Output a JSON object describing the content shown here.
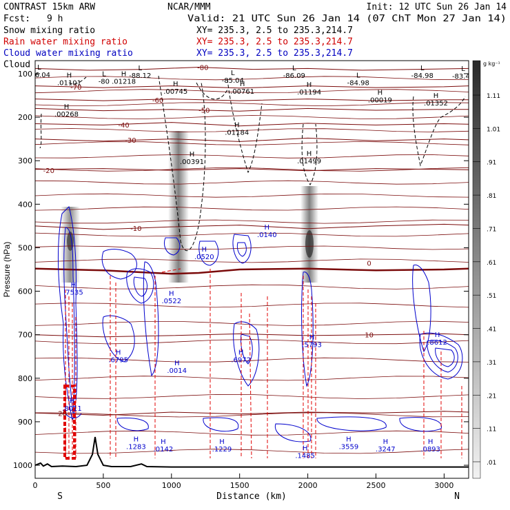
{
  "header": {
    "model": "CONTRAST 15km ARW",
    "institution": "NCAR/MMM",
    "init": "Init: 12 UTC Sun 26 Jan 14",
    "fcst_label": "Fcst:",
    "fcst_value": "9 h",
    "valid": "Valid: 21 UTC Sun 26 Jan 14 (07 ChT Mon 27 Jan 14)"
  },
  "fields": [
    {
      "name": "Snow mixing ratio",
      "xy": "XY= 235.3,  2.5 to 235.3,214.7",
      "color": "#000000"
    },
    {
      "name": "Rain water mixing ratio",
      "xy": "XY= 235.3,  2.5 to 235.3,214.7",
      "color": "#d00000"
    },
    {
      "name": "Cloud water mixing ratio",
      "xy": "XY= 235.3,  2.5 to 235.3,214.7",
      "color": "#0000c0"
    },
    {
      "name": "Cloud ice mixing ratio",
      "xy": "XY= 235.3,  2.5 to 235.3,214.7",
      "color": "#000000"
    }
  ],
  "colors": {
    "temperature": "#7a0a0a",
    "rain": "#e00000",
    "cloud_water": "#0000cc",
    "cloud_ice": "#000000",
    "terrain": "#000000"
  },
  "chart_data": {
    "type": "cross-section",
    "xlabel": "Distance (km)",
    "ylabel": "Pressure (hPa)",
    "xlim": [
      0,
      3180
    ],
    "ylim": [
      1030,
      70
    ],
    "x_ticks": [
      0,
      500,
      1000,
      1500,
      2000,
      2500,
      3000
    ],
    "y_ticks": [
      100,
      200,
      300,
      400,
      500,
      600,
      700,
      800,
      900,
      1000
    ],
    "x_end_labels": {
      "left": "S",
      "right": "N"
    },
    "colorbar": {
      "unit": "g kg⁻¹",
      "ticks": [
        "1.11",
        "1.01",
        ".91",
        ".81",
        ".71",
        ".61",
        ".51",
        ".41",
        ".31",
        ".21",
        ".11",
        ".01"
      ]
    },
    "terrain": [
      [
        0,
        1000
      ],
      [
        40,
        995
      ],
      [
        60,
        1002
      ],
      [
        90,
        997
      ],
      [
        120,
        1003
      ],
      [
        200,
        1002
      ],
      [
        300,
        1003
      ],
      [
        380,
        1000
      ],
      [
        420,
        975
      ],
      [
        440,
        935
      ],
      [
        460,
        975
      ],
      [
        500,
        1000
      ],
      [
        560,
        1003
      ],
      [
        700,
        1003
      ],
      [
        780,
        997
      ],
      [
        820,
        1003
      ],
      [
        1000,
        1004
      ],
      [
        1500,
        1004
      ],
      [
        2000,
        1004
      ],
      [
        2500,
        1004
      ],
      [
        3000,
        1004
      ],
      [
        3180,
        1004
      ]
    ],
    "temperature_isotherms": [
      {
        "label": "-80",
        "x": 1230,
        "p": 85,
        "path": [
          [
            0,
            88
          ],
          [
            400,
            92
          ],
          [
            800,
            90
          ],
          [
            1200,
            85
          ],
          [
            1600,
            90
          ],
          [
            2000,
            88
          ],
          [
            2400,
            92
          ],
          [
            2800,
            90
          ],
          [
            3180,
            88
          ]
        ]
      },
      {
        "label": "-70",
        "x": 300,
        "p": 130,
        "path": [
          [
            0,
            128
          ],
          [
            500,
            132
          ],
          [
            1000,
            128
          ],
          [
            1500,
            133
          ],
          [
            2000,
            128
          ],
          [
            2500,
            132
          ],
          [
            3000,
            130
          ],
          [
            3180,
            128
          ]
        ]
      },
      {
        "label": "-60",
        "x": 900,
        "p": 160,
        "path": [
          [
            0,
            158
          ],
          [
            500,
            162
          ],
          [
            1000,
            158
          ],
          [
            1500,
            162
          ],
          [
            2000,
            158
          ],
          [
            2500,
            162
          ],
          [
            3000,
            160
          ],
          [
            3180,
            160
          ]
        ]
      },
      {
        "label": "-50",
        "x": 1240,
        "p": 183,
        "path": [
          [
            0,
            180
          ],
          [
            500,
            185
          ],
          [
            1000,
            182
          ],
          [
            1500,
            186
          ],
          [
            2000,
            180
          ],
          [
            2500,
            184
          ],
          [
            3000,
            182
          ],
          [
            3180,
            182
          ]
        ]
      },
      {
        "label": "-40",
        "x": 650,
        "p": 217,
        "path": [
          [
            0,
            215
          ],
          [
            500,
            218
          ],
          [
            1000,
            212
          ],
          [
            1500,
            220
          ],
          [
            2000,
            214
          ],
          [
            2500,
            218
          ],
          [
            3000,
            215
          ],
          [
            3180,
            216
          ]
        ]
      },
      {
        "label": "-30",
        "x": 700,
        "p": 252,
        "path": [
          [
            0,
            250
          ],
          [
            500,
            255
          ],
          [
            1000,
            250
          ],
          [
            1500,
            256
          ],
          [
            2000,
            248
          ],
          [
            2500,
            254
          ],
          [
            3000,
            250
          ],
          [
            3180,
            252
          ]
        ]
      },
      {
        "label": "-20",
        "x": 100,
        "p": 322,
        "path": [
          [
            0,
            320
          ],
          [
            500,
            318
          ],
          [
            1000,
            322
          ],
          [
            1500,
            318
          ],
          [
            2000,
            323
          ],
          [
            2500,
            318
          ],
          [
            3000,
            320
          ],
          [
            3180,
            321
          ]
        ]
      },
      {
        "label": "-10",
        "x": 740,
        "p": 455,
        "path": [
          [
            0,
            450
          ],
          [
            500,
            458
          ],
          [
            1000,
            452
          ],
          [
            1500,
            448
          ],
          [
            2000,
            456
          ],
          [
            2500,
            450
          ],
          [
            3000,
            446
          ],
          [
            3180,
            448
          ]
        ]
      },
      {
        "label": "0",
        "x": 2450,
        "p": 535,
        "path": [
          [
            0,
            548
          ],
          [
            500,
            552
          ],
          [
            1000,
            560
          ],
          [
            1200,
            558
          ],
          [
            1500,
            550
          ],
          [
            2000,
            548
          ],
          [
            2500,
            552
          ],
          [
            3000,
            550
          ],
          [
            3180,
            548
          ]
        ]
      },
      {
        "label": "10",
        "x": 2450,
        "p": 700,
        "path": [
          [
            0,
            700
          ],
          [
            500,
            705
          ],
          [
            1000,
            702
          ],
          [
            1500,
            698
          ],
          [
            2000,
            702
          ],
          [
            2500,
            700
          ],
          [
            3000,
            698
          ],
          [
            3180,
            700
          ]
        ]
      },
      {
        "label": "20",
        "x": 200,
        "p": 880,
        "path": [
          [
            0,
            880
          ],
          [
            500,
            885
          ],
          [
            1000,
            878
          ],
          [
            1500,
            882
          ],
          [
            2000,
            878
          ],
          [
            2500,
            880
          ],
          [
            3000,
            876
          ],
          [
            3180,
            878
          ]
        ]
      }
    ],
    "cloud_ice_labels": [
      {
        "type": "L",
        "x": 30,
        "p": 100,
        "value": "-86.04"
      },
      {
        "type": "H",
        "x": 250,
        "p": 118,
        "value": ".01101"
      },
      {
        "type": "L",
        "x": 505,
        "p": 115,
        "value": "-80"
      },
      {
        "type": "H",
        "x": 650,
        "p": 115,
        "value": ".01218"
      },
      {
        "type": "L",
        "x": 770,
        "p": 102,
        "value": "-88.12"
      },
      {
        "type": "H",
        "x": 1030,
        "p": 138,
        "value": ".00745"
      },
      {
        "type": "L",
        "x": 1450,
        "p": 113,
        "value": "-85.04"
      },
      {
        "type": "H",
        "x": 1520,
        "p": 138,
        "value": ".00761"
      },
      {
        "type": "L",
        "x": 1900,
        "p": 102,
        "value": "-86.09"
      },
      {
        "type": "H",
        "x": 2010,
        "p": 140,
        "value": ".01194"
      },
      {
        "type": "L",
        "x": 2370,
        "p": 118,
        "value": "-84.98"
      },
      {
        "type": "H",
        "x": 2530,
        "p": 158,
        "value": ".00019"
      },
      {
        "type": "L",
        "x": 2840,
        "p": 102,
        "value": "-84.98"
      },
      {
        "type": "H",
        "x": 2940,
        "p": 165,
        "value": ".01352"
      },
      {
        "type": "L",
        "x": 3140,
        "p": 103,
        "value": "-83.47"
      },
      {
        "type": "H",
        "x": 230,
        "p": 190,
        "value": ".00268"
      },
      {
        "type": "H",
        "x": 1150,
        "p": 300,
        "value": ".00391"
      },
      {
        "type": "H",
        "x": 1480,
        "p": 232,
        "value": ".01184"
      },
      {
        "type": "H",
        "x": 2010,
        "p": 298,
        "value": ".01499"
      }
    ],
    "cloud_water_labels": [
      {
        "type": "H",
        "x": 280,
        "p": 600,
        "value": ".7535"
      },
      {
        "type": "H",
        "x": 1000,
        "p": 620,
        "value": ".0522"
      },
      {
        "type": "H",
        "x": 1040,
        "p": 780,
        "value": ".0014"
      },
      {
        "type": "H",
        "x": 610,
        "p": 755,
        "value": ".6795"
      },
      {
        "type": "H",
        "x": 1510,
        "p": 755,
        "value": ".6972"
      },
      {
        "type": "H",
        "x": 1700,
        "p": 468,
        "value": ".0140"
      },
      {
        "type": "H",
        "x": 1240,
        "p": 518,
        "value": ".0520"
      },
      {
        "type": "H",
        "x": 2030,
        "p": 720,
        "value": ".5793"
      },
      {
        "type": "H",
        "x": 2950,
        "p": 715,
        "value": ".8612"
      },
      {
        "type": "H",
        "x": 270,
        "p": 867,
        "value": ".8011"
      },
      {
        "type": "H",
        "x": 740,
        "p": 955,
        "value": ".1283"
      },
      {
        "type": "H",
        "x": 940,
        "p": 960,
        "value": ".0142"
      },
      {
        "type": "H",
        "x": 1370,
        "p": 960,
        "value": ".1229"
      },
      {
        "type": "H",
        "x": 1980,
        "p": 975,
        "value": ".1485"
      },
      {
        "type": "H",
        "x": 2300,
        "p": 955,
        "value": ".3559"
      },
      {
        "type": "H",
        "x": 2570,
        "p": 960,
        "value": ".3247"
      },
      {
        "type": "H",
        "x": 2900,
        "p": 960,
        "value": ".0893"
      }
    ]
  }
}
